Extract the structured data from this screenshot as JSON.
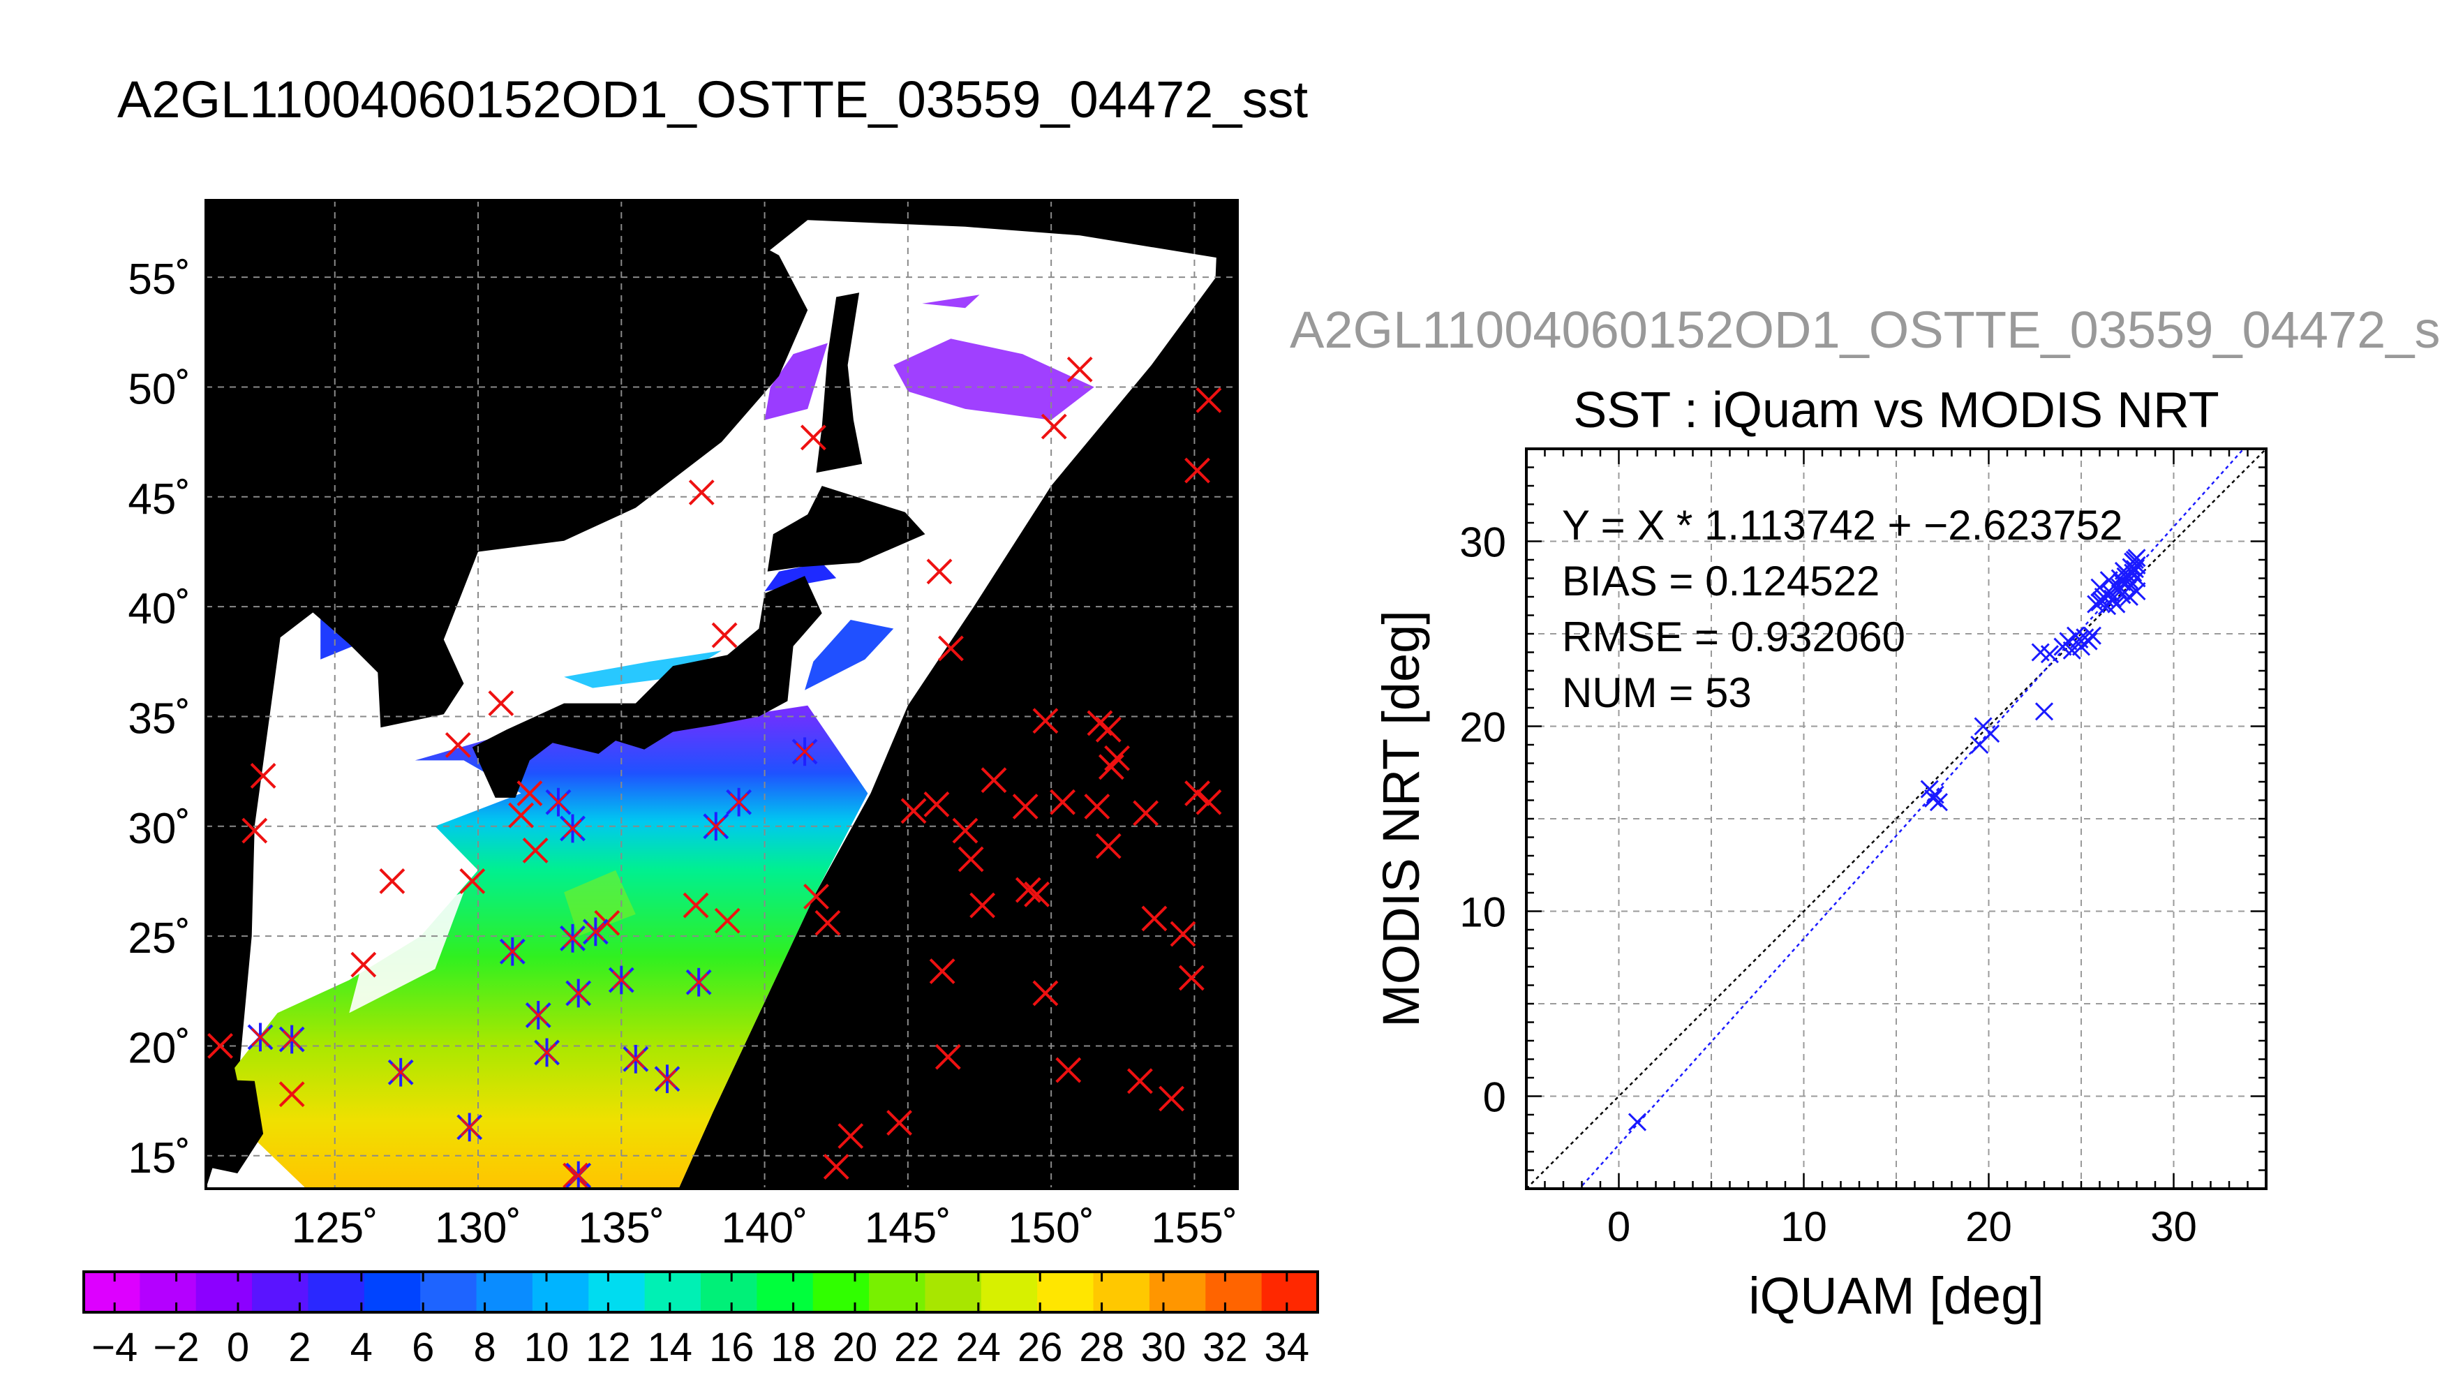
{
  "map_title": "A2GL11004060152OD1_OSTTE_03559_04472_sst",
  "scatter_header": "A2GL11004060152OD1_OSTTE_03559_04472_s",
  "chart_data": [
    {
      "type": "map",
      "title": "A2GL11004060152OD1_OSTTE_03559_04472_sst",
      "lat_ticks": [
        "15˚",
        "20˚",
        "25˚",
        "30˚",
        "35˚",
        "40˚",
        "45˚",
        "50˚",
        "55˚"
      ],
      "lon_ticks": [
        "125˚",
        "130˚",
        "135˚",
        "140˚",
        "145˚",
        "150˚",
        "155˚"
      ],
      "lon_range": [
        120.5,
        156.5
      ],
      "lat_range": [
        13.5,
        58.5
      ],
      "colorbar": {
        "ticks": [
          "−4",
          "−2",
          "0",
          "2",
          "4",
          "6",
          "8",
          "10",
          "12",
          "14",
          "16",
          "18",
          "20",
          "22",
          "24",
          "26",
          "28",
          "30",
          "32",
          "34"
        ],
        "range": [
          -5,
          35
        ],
        "colors": [
          "#dd00ff",
          "#b400ff",
          "#8c00ff",
          "#5a14ff",
          "#2a28ff",
          "#0044ff",
          "#1e64ff",
          "#0a8cff",
          "#00b4ff",
          "#00dcf0",
          "#00f0b4",
          "#00f078",
          "#00ff3c",
          "#30ff00",
          "#78f000",
          "#a8e600",
          "#d7f000",
          "#ffe600",
          "#ffc800",
          "#ff9600",
          "#ff6400",
          "#ff2800"
        ]
      },
      "markers_red": [
        [
          121,
          20
        ],
        [
          122.2,
          29.8
        ],
        [
          122.5,
          32.3
        ],
        [
          123.5,
          17.8
        ],
        [
          126,
          23.7
        ],
        [
          127,
          27.5
        ],
        [
          129.8,
          27.5
        ],
        [
          129.3,
          33.7
        ],
        [
          130.8,
          35.6
        ],
        [
          131.8,
          31.5
        ],
        [
          131.5,
          30.5
        ],
        [
          132,
          28.9
        ],
        [
          133.4,
          14.1
        ],
        [
          134.5,
          25.6
        ],
        [
          137.6,
          26.4
        ],
        [
          138.7,
          25.7
        ],
        [
          138.6,
          38.7
        ],
        [
          137.8,
          45.2
        ],
        [
          141.7,
          47.7
        ],
        [
          141.8,
          26.8
        ],
        [
          142.2,
          25.6
        ],
        [
          142.5,
          14.5
        ],
        [
          143,
          15.9
        ],
        [
          144.7,
          16.5
        ],
        [
          145.2,
          30.7
        ],
        [
          146,
          31
        ],
        [
          146.2,
          23.4
        ],
        [
          146.4,
          19.5
        ],
        [
          146.5,
          38.1
        ],
        [
          146.1,
          41.6
        ],
        [
          147,
          29.8
        ],
        [
          147.2,
          28.5
        ],
        [
          147.6,
          26.4
        ],
        [
          148,
          32.1
        ],
        [
          149.1,
          30.9
        ],
        [
          149.2,
          27.1
        ],
        [
          149.5,
          26.9
        ],
        [
          149.8,
          22.4
        ],
        [
          149.8,
          34.8
        ],
        [
          150.4,
          31.1
        ],
        [
          150.1,
          48.2
        ],
        [
          151,
          50.8
        ],
        [
          150.6,
          18.9
        ],
        [
          151.6,
          30.9
        ],
        [
          151.7,
          34.7
        ],
        [
          152,
          34.4
        ],
        [
          152.1,
          32.7
        ],
        [
          152,
          29.1
        ],
        [
          152.3,
          33.1
        ],
        [
          153.3,
          30.6
        ],
        [
          153.1,
          18.4
        ],
        [
          153.6,
          25.8
        ],
        [
          154.2,
          17.6
        ],
        [
          154.6,
          25.1
        ],
        [
          154.9,
          23.1
        ],
        [
          155.1,
          31.5
        ],
        [
          155.5,
          31.1
        ],
        [
          155.1,
          46.2
        ],
        [
          155.5,
          49.4
        ]
      ],
      "markers_blue": [
        [
          122.4,
          20.4
        ],
        [
          123.5,
          20.3
        ],
        [
          127.3,
          18.8
        ],
        [
          129.7,
          16.3
        ],
        [
          131.2,
          24.3
        ],
        [
          132.1,
          21.4
        ],
        [
          132.4,
          19.7
        ],
        [
          132.8,
          31.1
        ],
        [
          133.3,
          29.9
        ],
        [
          133.3,
          24.9
        ],
        [
          134.1,
          25.2
        ],
        [
          133.5,
          22.4
        ],
        [
          133.5,
          14.1
        ],
        [
          135,
          23
        ],
        [
          135.5,
          19.4
        ],
        [
          136.6,
          18.5
        ],
        [
          137.7,
          22.9
        ],
        [
          138.3,
          30
        ],
        [
          139.1,
          31.1
        ],
        [
          141.4,
          33.4
        ]
      ]
    },
    {
      "type": "scatter",
      "title": "SST : iQuam vs MODIS NRT",
      "xlabel": "iQUAM [deg]",
      "ylabel": "MODIS NRT [deg]",
      "xlim": [
        -5,
        35
      ],
      "ylim": [
        -5,
        35
      ],
      "x_ticks": [
        0,
        10,
        20,
        30
      ],
      "y_ticks": [
        0,
        10,
        20,
        30
      ],
      "grid": true,
      "stats": [
        "Y = X * 1.113742 + −2.623752",
        "BIAS = 0.124522",
        "RMSE = 0.932060",
        "NUM = 53"
      ],
      "identity_line": {
        "slope": 1,
        "intercept": 0
      },
      "fit_line": {
        "slope": 1.113742,
        "intercept": -2.623752
      },
      "points": [
        [
          1.0,
          -1.4
        ],
        [
          16.8,
          16.6
        ],
        [
          17.0,
          16.1
        ],
        [
          17.1,
          16.3
        ],
        [
          17.3,
          15.9
        ],
        [
          19.5,
          19.0
        ],
        [
          19.7,
          20.0
        ],
        [
          20.1,
          19.6
        ],
        [
          22.8,
          24.0
        ],
        [
          23.0,
          20.8
        ],
        [
          23.3,
          23.9
        ],
        [
          24.0,
          24.3
        ],
        [
          24.3,
          24.6
        ],
        [
          24.5,
          24.1
        ],
        [
          24.7,
          24.9
        ],
        [
          24.9,
          24.7
        ],
        [
          25.0,
          24.3
        ],
        [
          25.2,
          24.8
        ],
        [
          25.4,
          24.6
        ],
        [
          25.6,
          24.9
        ],
        [
          25.8,
          26.6
        ],
        [
          26.0,
          27.5
        ],
        [
          26.1,
          26.8
        ],
        [
          26.2,
          27.0
        ],
        [
          26.4,
          26.5
        ],
        [
          26.5,
          27.9
        ],
        [
          26.6,
          27.2
        ],
        [
          26.7,
          26.9
        ],
        [
          26.8,
          27.6
        ],
        [
          27.0,
          27.4
        ],
        [
          27.1,
          28.0
        ],
        [
          27.2,
          27.1
        ],
        [
          27.3,
          28.4
        ],
        [
          27.4,
          27.7
        ],
        [
          27.5,
          28.2
        ],
        [
          27.6,
          27.9
        ],
        [
          27.7,
          28.6
        ],
        [
          27.8,
          28.3
        ],
        [
          27.9,
          29.0
        ],
        [
          28.0,
          28.7
        ],
        [
          28.0,
          27.3
        ],
        [
          27.6,
          27.0
        ],
        [
          27.9,
          28.5
        ],
        [
          27.2,
          27.8
        ],
        [
          26.9,
          26.6
        ],
        [
          28.0,
          29.1
        ],
        [
          27.8,
          28.9
        ],
        [
          26.3,
          26.9
        ],
        [
          27.1,
          27.5
        ],
        [
          27.4,
          28.1
        ],
        [
          26.0,
          26.7
        ],
        [
          27.7,
          27.6
        ],
        [
          28.0,
          28.0
        ]
      ]
    }
  ]
}
